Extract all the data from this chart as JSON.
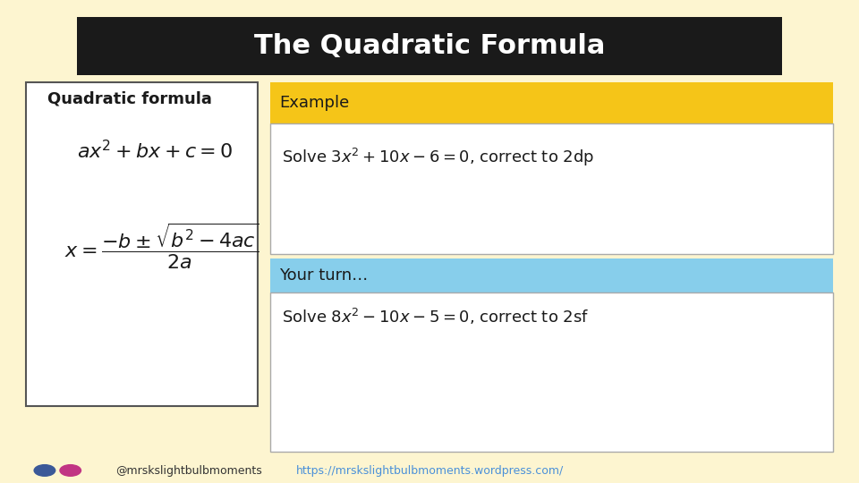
{
  "bg_color": "#fdf5d0",
  "header_bg": "#1a1a1a",
  "header_text": "The Quadratic Formula",
  "header_text_color": "#ffffff",
  "example_header_color": "#f5c518",
  "example_header_text": "Example",
  "yourturn_header_color": "#87ceeb",
  "yourturn_header_text": "Your turn…",
  "formula_box_color": "#ffffff",
  "formula_title": "Quadratic formula",
  "footer_handle": "@mrskslightbulbmoments",
  "footer_url": "https://mrskslightbulbmoments.wordpress.com/",
  "footer_color": "#333333"
}
